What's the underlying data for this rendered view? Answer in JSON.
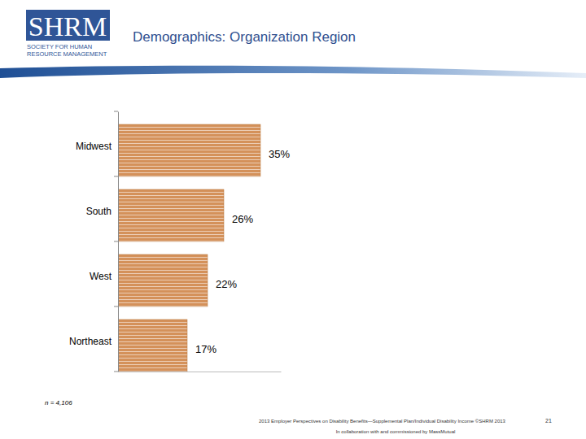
{
  "logo": [
    "SHRM",
    "SOCIETY FOR HUMAN",
    "RESOURCE MANAGEMENT"
  ],
  "footer": [
    "2013 Employer Perspectives on Disability Benefits—Supplemental Plan/Individual Disability Income ©SHRM 2013",
    "In collaboration with and commissioned by MassMutual",
    "21"
  ],
  "chart_data": {
    "type": "bar",
    "title": "Demographics: Organization Region",
    "orientation": "horizontal",
    "categories": [
      "Midwest",
      "South",
      "West",
      "Northeast"
    ],
    "values": [
      35,
      26,
      22,
      17
    ],
    "value_labels": [
      "35%",
      "26%",
      "22%",
      "17%"
    ],
    "data_labels": true,
    "color": "#d4915a",
    "xlim": [
      0,
      40
    ],
    "tick_labels": "y",
    "grid": false,
    "annotations": [
      "n = 4,106"
    ]
  }
}
